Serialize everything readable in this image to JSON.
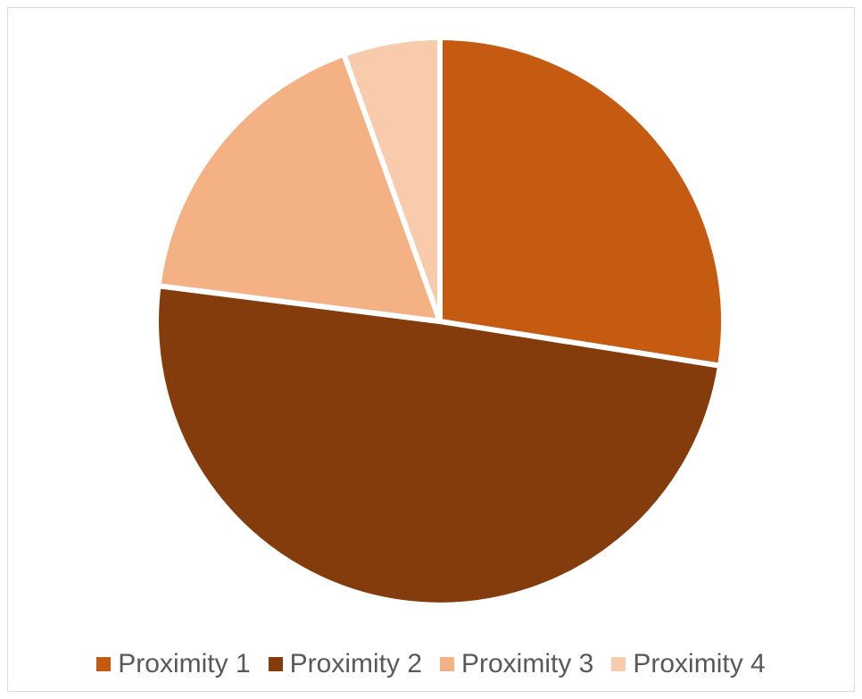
{
  "chart_data": {
    "type": "pie",
    "title": "",
    "categories": [
      "Proximity 1",
      "Proximity 2",
      "Proximity 3",
      "Proximity 4"
    ],
    "values": [
      27.5,
      49.5,
      17.5,
      5.5
    ],
    "colors": [
      "#c55a11",
      "#843c0c",
      "#f4b183",
      "#f8cbad"
    ],
    "legend_position": "bottom",
    "start_angle": "top, clockwise"
  }
}
